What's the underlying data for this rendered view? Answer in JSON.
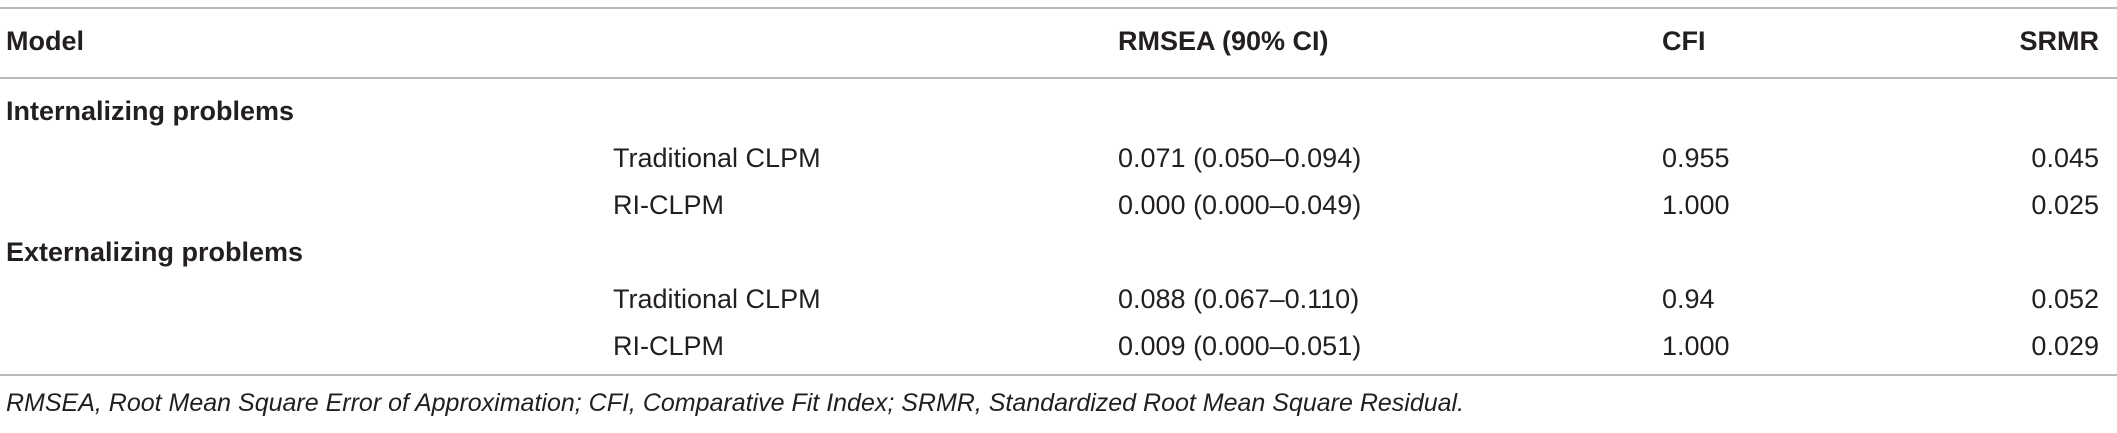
{
  "table": {
    "headers": {
      "model": "Model",
      "rmsea": "RMSEA (90% CI)",
      "cfi": "CFI",
      "srmr": "SRMR"
    },
    "groups": [
      {
        "label": "Internalizing problems",
        "rows": [
          {
            "model": "Traditional CLPM",
            "rmsea": "0.071 (0.050–0.094)",
            "cfi": "0.955",
            "srmr": "0.045"
          },
          {
            "model": "RI-CLPM",
            "rmsea": "0.000 (0.000–0.049)",
            "cfi": "1.000",
            "srmr": "0.025"
          }
        ]
      },
      {
        "label": "Externalizing problems",
        "rows": [
          {
            "model": "Traditional CLPM",
            "rmsea": "0.088 (0.067–0.110)",
            "cfi": "0.94",
            "srmr": "0.052"
          },
          {
            "model": "RI-CLPM",
            "rmsea": "0.009 (0.000–0.051)",
            "cfi": "1.000",
            "srmr": "0.029"
          }
        ]
      }
    ],
    "footnote": "RMSEA, Root Mean Square Error of Approximation; CFI, Comparative Fit Index; SRMR, Standardized Root Mean Square Residual."
  }
}
